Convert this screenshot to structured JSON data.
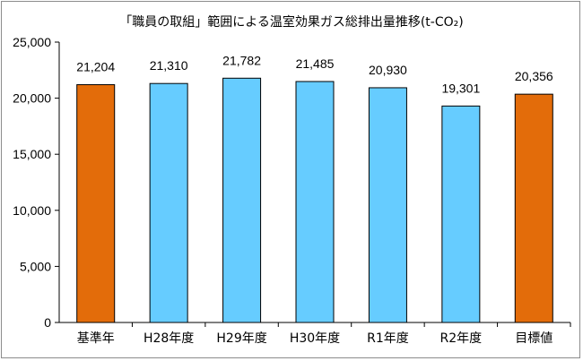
{
  "chart_data": {
    "type": "bar",
    "title": "「職員の取組」範囲による温室効果ガス総排出量推移(t-CO₂)",
    "categories": [
      "基準年",
      "H28年度",
      "H29年度",
      "H30年度",
      "R1年度",
      "R2年度",
      "目標値"
    ],
    "values": [
      21204,
      21310,
      21782,
      21485,
      20930,
      19301,
      20356
    ],
    "value_labels": [
      "21,204",
      "21,310",
      "21,782",
      "21,485",
      "20,930",
      "19,301",
      "20,356"
    ],
    "bar_colors": [
      "#e36c0a",
      "#66ccff",
      "#66ccff",
      "#66ccff",
      "#66ccff",
      "#66ccff",
      "#e36c0a"
    ],
    "ylim": [
      0,
      25000
    ],
    "yticks": [
      0,
      5000,
      10000,
      15000,
      20000,
      25000
    ],
    "ytick_labels": [
      "0",
      "5,000",
      "10,000",
      "15,000",
      "20,000",
      "25,000"
    ],
    "xlabel": "",
    "ylabel": "",
    "grid": false,
    "legend": "none"
  }
}
